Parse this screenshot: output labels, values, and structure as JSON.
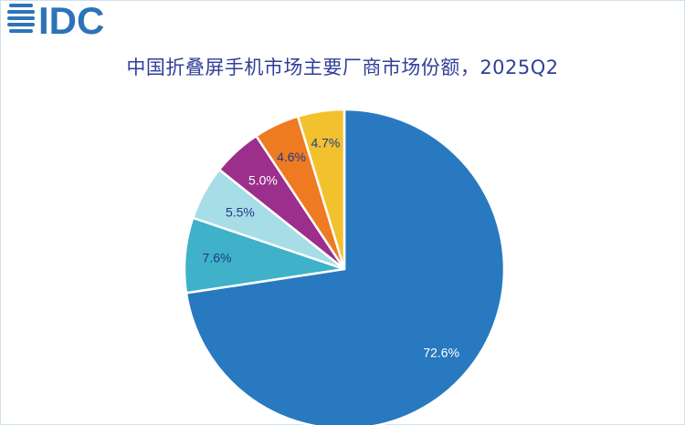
{
  "brand": {
    "logo_text": "IDC",
    "logo_color": "#2e73b8"
  },
  "chart_data": {
    "type": "pie",
    "title": "中国折叠屏手机市场主要厂商市场份额，2025Q2",
    "values": [
      72.6,
      7.6,
      5.5,
      5.0,
      4.6,
      4.7
    ],
    "labels": [
      "72.6%",
      "7.6%",
      "5.5%",
      "5.0%",
      "4.6%",
      "4.7%"
    ],
    "colors": [
      "#2879c0",
      "#3fb1c8",
      "#a6dde6",
      "#9c2f8b",
      "#ee7a22",
      "#f2c12e"
    ],
    "label_colors": [
      "#ffffff",
      "#1f3a8a",
      "#1f3a8a",
      "#ffffff",
      "#1f3a8a",
      "#1f3a8a"
    ],
    "legend": "none"
  }
}
